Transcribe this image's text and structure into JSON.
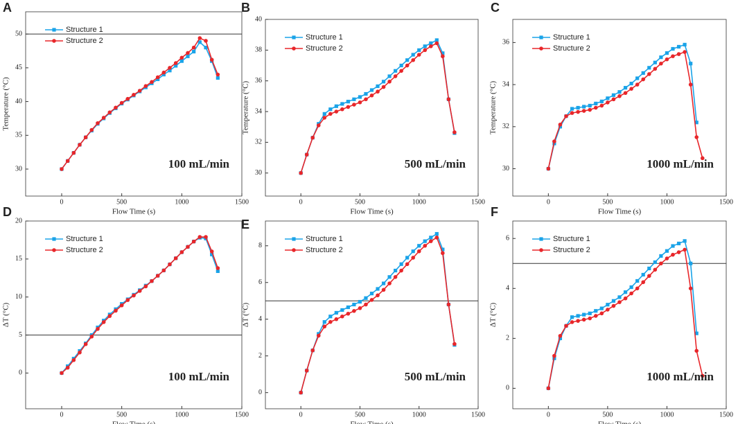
{
  "chart_data": [
    {
      "type": "line",
      "panel": "A",
      "xlabel": "Flow Time (s)",
      "ylabel": "Temperature (°C)",
      "annotation": "100 mL/min",
      "x": [
        0,
        50,
        100,
        150,
        200,
        250,
        300,
        350,
        400,
        450,
        500,
        550,
        600,
        650,
        700,
        750,
        800,
        850,
        900,
        950,
        1000,
        1050,
        1100,
        1150,
        1200,
        1250,
        1300
      ],
      "series": [
        {
          "name": "Structure 1",
          "color": "#1aa3e8",
          "marker": "square",
          "values": [
            30,
            31.2,
            32.4,
            33.6,
            34.7,
            35.7,
            36.7,
            37.5,
            38.3,
            39.0,
            39.7,
            40.3,
            40.9,
            41.5,
            42.1,
            42.7,
            43.3,
            44.0,
            44.6,
            45.3,
            46.0,
            46.7,
            47.4,
            48.8,
            48.0,
            46.0,
            43.5
          ]
        },
        {
          "name": "Structure 2",
          "color": "#e8262a",
          "marker": "circle",
          "values": [
            30,
            31.2,
            32.4,
            33.6,
            34.7,
            35.8,
            36.8,
            37.6,
            38.4,
            39.1,
            39.8,
            40.4,
            41.0,
            41.6,
            42.3,
            42.9,
            43.6,
            44.3,
            45.0,
            45.7,
            46.5,
            47.2,
            48.0,
            49.4,
            49.0,
            46.2,
            44.0
          ]
        }
      ],
      "xlim": [
        -300,
        1500
      ],
      "xticks": [
        0,
        500,
        1000,
        1500
      ],
      "ylim": [
        26,
        53.3
      ],
      "yticks": [
        30,
        35,
        40,
        45,
        50
      ],
      "hline": 50
    },
    {
      "type": "line",
      "panel": "B",
      "xlabel": "Flow Time (s)",
      "ylabel": "Temperature (°C)",
      "annotation": "500 mL/min",
      "x": [
        0,
        50,
        100,
        150,
        200,
        250,
        300,
        350,
        400,
        450,
        500,
        550,
        600,
        650,
        700,
        750,
        800,
        850,
        900,
        950,
        1000,
        1050,
        1100,
        1150,
        1200,
        1250,
        1300
      ],
      "series": [
        {
          "name": "Structure 1",
          "color": "#1aa3e8",
          "marker": "square",
          "values": [
            30,
            31.2,
            32.3,
            33.2,
            33.85,
            34.15,
            34.35,
            34.5,
            34.65,
            34.8,
            34.95,
            35.15,
            35.4,
            35.65,
            35.95,
            36.3,
            36.65,
            37.0,
            37.35,
            37.7,
            38.0,
            38.25,
            38.45,
            38.65,
            37.8,
            34.8,
            32.6
          ]
        },
        {
          "name": "Structure 2",
          "color": "#e8262a",
          "marker": "circle",
          "values": [
            30,
            31.2,
            32.3,
            33.1,
            33.6,
            33.85,
            34.0,
            34.15,
            34.3,
            34.45,
            34.6,
            34.8,
            35.05,
            35.3,
            35.6,
            35.95,
            36.3,
            36.65,
            37.0,
            37.35,
            37.7,
            38.0,
            38.25,
            38.45,
            37.6,
            34.8,
            32.65
          ]
        }
      ],
      "xlim": [
        -300,
        1500
      ],
      "xticks": [
        0,
        500,
        1000,
        1500
      ],
      "ylim": [
        28.5,
        40
      ],
      "yticks": [
        30,
        32,
        34,
        36,
        38,
        40
      ]
    },
    {
      "type": "line",
      "panel": "C",
      "xlabel": "Flow Time (s)",
      "ylabel": "Temperature (°C)",
      "annotation": "1000 mL/min",
      "x": [
        0,
        50,
        100,
        150,
        200,
        250,
        300,
        350,
        400,
        450,
        500,
        550,
        600,
        650,
        700,
        750,
        800,
        850,
        900,
        950,
        1000,
        1050,
        1100,
        1150,
        1200,
        1250,
        1300
      ],
      "series": [
        {
          "name": "Structure 1",
          "color": "#1aa3e8",
          "marker": "square",
          "values": [
            30,
            31.2,
            32.0,
            32.5,
            32.85,
            32.9,
            32.95,
            33.0,
            33.1,
            33.2,
            33.35,
            33.5,
            33.65,
            33.85,
            34.05,
            34.3,
            34.55,
            34.8,
            35.05,
            35.3,
            35.5,
            35.7,
            35.8,
            35.9,
            35.0,
            32.2,
            null
          ]
        },
        {
          "name": "Structure 2",
          "color": "#e8262a",
          "marker": "circle",
          "values": [
            30,
            31.3,
            32.1,
            32.5,
            32.65,
            32.7,
            32.75,
            32.8,
            32.9,
            33.0,
            33.15,
            33.3,
            33.45,
            33.6,
            33.8,
            34.0,
            34.25,
            34.5,
            34.75,
            35.0,
            35.2,
            35.35,
            35.45,
            35.55,
            34.0,
            31.5,
            30.5
          ]
        }
      ],
      "xlim": [
        -300,
        1500
      ],
      "xticks": [
        0,
        500,
        1000,
        1500
      ],
      "ylim": [
        28.7,
        37.1
      ],
      "yticks": [
        30,
        32,
        34,
        36
      ]
    },
    {
      "type": "line",
      "panel": "D",
      "xlabel": "Flow Time (s)",
      "ylabel": "ΔT (°C)",
      "annotation": "100 mL/min",
      "x": [
        0,
        50,
        100,
        150,
        200,
        250,
        300,
        350,
        400,
        450,
        500,
        550,
        600,
        650,
        700,
        750,
        800,
        850,
        900,
        950,
        1000,
        1050,
        1100,
        1150,
        1200,
        1250,
        1300
      ],
      "series": [
        {
          "name": "Structure 1",
          "color": "#1aa3e8",
          "marker": "square",
          "values": [
            0,
            0.9,
            1.9,
            2.9,
            3.9,
            5.0,
            6.0,
            6.9,
            7.7,
            8.4,
            9.1,
            9.7,
            10.3,
            10.9,
            11.5,
            12.1,
            12.8,
            13.5,
            14.3,
            15.1,
            15.9,
            16.6,
            17.3,
            17.8,
            17.7,
            15.6,
            13.4
          ]
        },
        {
          "name": "Structure 2",
          "color": "#e8262a",
          "marker": "circle",
          "values": [
            0,
            0.7,
            1.7,
            2.7,
            3.8,
            4.8,
            5.8,
            6.7,
            7.5,
            8.2,
            8.9,
            9.6,
            10.2,
            10.8,
            11.4,
            12.1,
            12.8,
            13.5,
            14.3,
            15.1,
            15.9,
            16.6,
            17.3,
            17.9,
            17.9,
            16.0,
            13.8
          ]
        }
      ],
      "xlim": [
        -300,
        1500
      ],
      "xticks": [
        0,
        500,
        1000,
        1500
      ],
      "ylim": [
        -4.7,
        20
      ],
      "yticks": [
        0,
        5,
        10,
        15,
        20
      ],
      "hline": 5
    },
    {
      "type": "line",
      "panel": "E",
      "xlabel": "Flow Time (s)",
      "ylabel": "ΔT (°C)",
      "annotation": "500 mL/min",
      "x": [
        0,
        50,
        100,
        150,
        200,
        250,
        300,
        350,
        400,
        450,
        500,
        550,
        600,
        650,
        700,
        750,
        800,
        850,
        900,
        950,
        1000,
        1050,
        1100,
        1150,
        1200,
        1250,
        1300
      ],
      "series": [
        {
          "name": "Structure 1",
          "color": "#1aa3e8",
          "marker": "square",
          "values": [
            0,
            1.2,
            2.3,
            3.2,
            3.85,
            4.15,
            4.35,
            4.5,
            4.65,
            4.8,
            4.95,
            5.15,
            5.4,
            5.65,
            5.95,
            6.3,
            6.65,
            7.0,
            7.35,
            7.7,
            8.0,
            8.25,
            8.45,
            8.65,
            7.8,
            4.8,
            2.6
          ]
        },
        {
          "name": "Structure 2",
          "color": "#e8262a",
          "marker": "circle",
          "values": [
            0,
            1.2,
            2.3,
            3.1,
            3.6,
            3.85,
            4.0,
            4.15,
            4.3,
            4.45,
            4.6,
            4.8,
            5.05,
            5.3,
            5.6,
            5.95,
            6.3,
            6.65,
            7.0,
            7.35,
            7.7,
            8.0,
            8.25,
            8.45,
            7.6,
            4.8,
            2.65
          ]
        }
      ],
      "xlim": [
        -300,
        1500
      ],
      "xticks": [
        0,
        500,
        1000,
        1500
      ],
      "ylim": [
        -0.88,
        9.35
      ],
      "yticks": [
        0,
        2,
        4,
        6,
        8
      ],
      "hline": 5
    },
    {
      "type": "line",
      "panel": "F",
      "xlabel": "Flow Time (s)",
      "ylabel": "ΔT (°C)",
      "annotation": "1000 mL/min",
      "x": [
        0,
        50,
        100,
        150,
        200,
        250,
        300,
        350,
        400,
        450,
        500,
        550,
        600,
        650,
        700,
        750,
        800,
        850,
        900,
        950,
        1000,
        1050,
        1100,
        1150,
        1200,
        1250,
        1300
      ],
      "series": [
        {
          "name": "Structure 1",
          "color": "#1aa3e8",
          "marker": "square",
          "values": [
            0,
            1.2,
            2.0,
            2.5,
            2.85,
            2.9,
            2.95,
            3.0,
            3.1,
            3.2,
            3.35,
            3.5,
            3.65,
            3.85,
            4.05,
            4.3,
            4.55,
            4.8,
            5.05,
            5.3,
            5.5,
            5.7,
            5.8,
            5.9,
            5.0,
            2.2,
            null
          ]
        },
        {
          "name": "Structure 2",
          "color": "#e8262a",
          "marker": "circle",
          "values": [
            0,
            1.3,
            2.1,
            2.5,
            2.65,
            2.7,
            2.75,
            2.8,
            2.9,
            3.0,
            3.15,
            3.3,
            3.45,
            3.6,
            3.8,
            4.0,
            4.25,
            4.5,
            4.75,
            5.0,
            5.2,
            5.35,
            5.45,
            5.55,
            4.0,
            1.5,
            0.5
          ]
        }
      ],
      "xlim": [
        -300,
        1500
      ],
      "xticks": [
        0,
        500,
        1000,
        1500
      ],
      "ylim": [
        -0.82,
        6.7
      ],
      "yticks": [
        0,
        2,
        4,
        6
      ],
      "hline": 5
    }
  ]
}
